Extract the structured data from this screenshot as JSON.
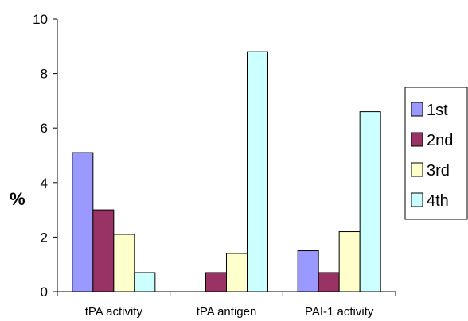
{
  "chart_data": {
    "type": "bar",
    "title": "",
    "xlabel": "",
    "ylabel": "%",
    "ylim": [
      0,
      10
    ],
    "yticks": [
      0,
      2,
      4,
      6,
      8,
      10
    ],
    "grid": false,
    "legend_position": "right",
    "categories": [
      "tPA activity",
      "tPA antigen",
      "PAI-1 activity"
    ],
    "series": [
      {
        "name": "1st",
        "color": "#9999ff",
        "values": [
          5.1,
          0,
          1.5
        ]
      },
      {
        "name": "2nd",
        "color": "#993366",
        "values": [
          3.0,
          0.7,
          0.7
        ]
      },
      {
        "name": "3rd",
        "color": "#ffffcc",
        "values": [
          2.1,
          1.4,
          2.2
        ]
      },
      {
        "name": "4th",
        "color": "#ccffff",
        "values": [
          0.7,
          8.8,
          6.6
        ]
      }
    ]
  }
}
